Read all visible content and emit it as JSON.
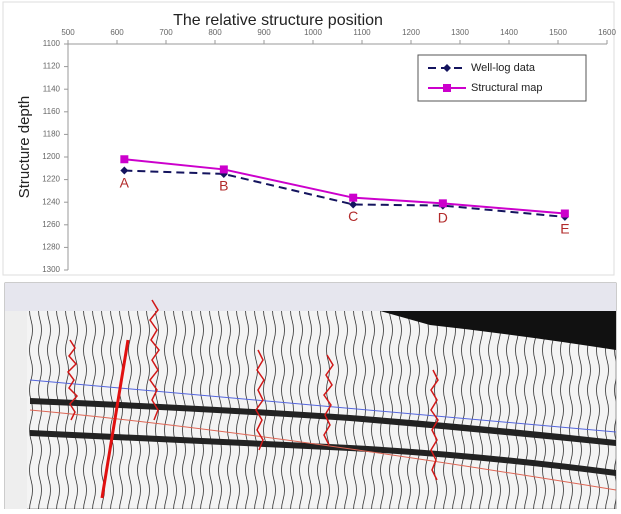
{
  "chart_data": {
    "type": "line",
    "title": "The relative structure position",
    "y_label": "Structure  depth",
    "x": [
      615,
      818,
      1082,
      1265,
      1514
    ],
    "point_labels": [
      "A",
      "B",
      "C",
      "D",
      "E"
    ],
    "point_label_color": "#b22a2a",
    "series": [
      {
        "name": "Well-log data",
        "color": "#14145e",
        "dash": true,
        "marker": "diamond",
        "values": [
          1212,
          1215,
          1242,
          1243,
          1253
        ]
      },
      {
        "name": "Structural map",
        "color": "#cc00cc",
        "dash": false,
        "marker": "square",
        "values": [
          1202,
          1211,
          1236,
          1241,
          1250
        ]
      }
    ],
    "xlim": [
      500,
      1600
    ],
    "xticks": [
      500,
      600,
      700,
      800,
      900,
      1000,
      1100,
      1200,
      1300,
      1400,
      1500,
      1600
    ],
    "ylim": [
      1100,
      1300
    ],
    "yticks": [
      1100,
      1120,
      1140,
      1160,
      1180,
      1200,
      1220,
      1240,
      1260,
      1280,
      1300
    ],
    "y_inverted": true,
    "x_axis_position": "top",
    "grid": false,
    "legend": "upper right"
  }
}
